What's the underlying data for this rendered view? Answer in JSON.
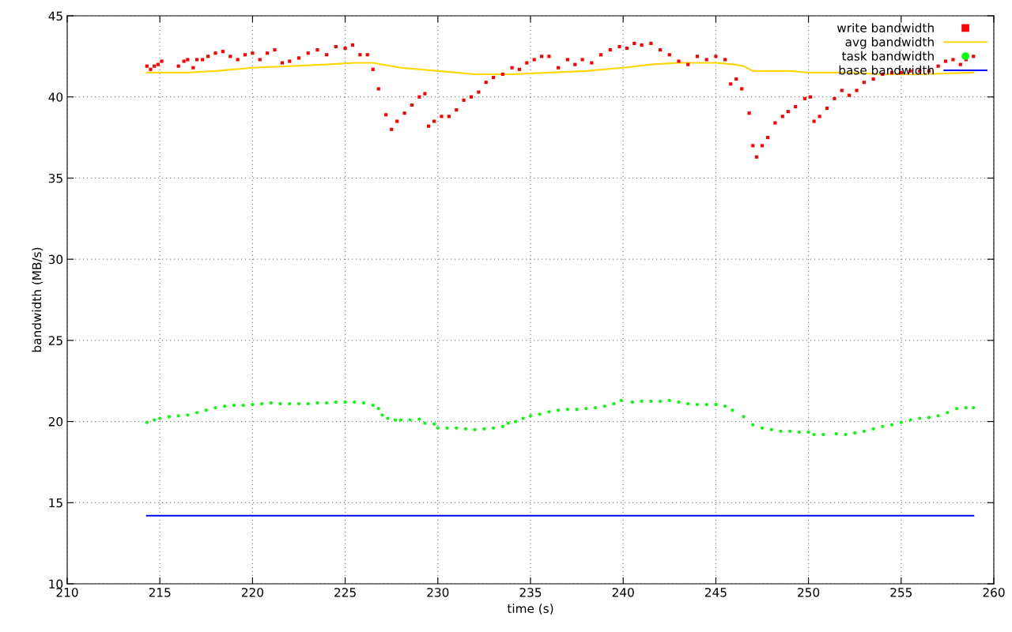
{
  "chart_data": {
    "type": "scatter",
    "xlabel": "time (s)",
    "ylabel": "bandwidth (MB/s)",
    "xlim": [
      210,
      260
    ],
    "xticks": [
      210,
      215,
      220,
      225,
      230,
      235,
      240,
      245,
      250,
      255,
      260
    ],
    "ylim": [
      10,
      45
    ],
    "yticks": [
      10,
      15,
      20,
      25,
      30,
      35,
      40,
      45
    ],
    "grid": true,
    "legend": "top right",
    "series": [
      {
        "name": "write bandwidth",
        "marker": "square",
        "color": "#ff0000",
        "x": [
          214.3,
          214.5,
          214.7,
          214.9,
          215.1,
          216.0,
          216.3,
          216.5,
          216.8,
          217.0,
          217.3,
          217.6,
          218.0,
          218.4,
          218.8,
          219.2,
          219.6,
          220.0,
          220.4,
          220.8,
          221.2,
          221.6,
          222.0,
          222.5,
          223.0,
          223.5,
          224.0,
          224.5,
          225.0,
          225.4,
          225.8,
          226.2,
          226.5,
          226.8,
          227.2,
          227.5,
          227.8,
          228.2,
          228.6,
          229.0,
          229.3,
          229.5,
          229.8,
          230.2,
          230.6,
          231.0,
          231.4,
          231.8,
          232.2,
          232.6,
          233.0,
          233.5,
          234.0,
          234.4,
          234.8,
          235.2,
          235.6,
          236.0,
          236.5,
          237.0,
          237.4,
          237.8,
          238.3,
          238.8,
          239.3,
          239.8,
          240.2,
          240.6,
          241.0,
          241.5,
          242.0,
          242.5,
          243.0,
          243.5,
          244.0,
          244.5,
          245.0,
          245.5,
          245.8,
          246.1,
          246.4,
          246.8,
          247.0,
          247.2,
          247.5,
          247.8,
          248.2,
          248.6,
          248.9,
          249.3,
          249.8,
          250.1,
          250.3,
          250.6,
          251.0,
          251.4,
          251.8,
          252.2,
          252.6,
          253.0,
          253.5,
          254.0,
          254.5,
          255.0,
          255.5,
          256.0,
          256.5,
          257.0,
          257.4,
          257.8,
          258.2,
          258.5,
          258.9
        ],
        "values": [
          41.9,
          41.7,
          41.9,
          42.0,
          42.2,
          41.9,
          42.2,
          42.3,
          41.8,
          42.3,
          42.3,
          42.5,
          42.7,
          42.8,
          42.5,
          42.3,
          42.6,
          42.7,
          42.3,
          42.7,
          42.9,
          42.1,
          42.2,
          42.4,
          42.7,
          42.9,
          42.6,
          43.1,
          43.0,
          43.2,
          42.6,
          42.6,
          41.7,
          40.5,
          38.9,
          38.0,
          38.5,
          39.0,
          39.5,
          40.0,
          40.2,
          38.2,
          38.5,
          38.8,
          38.8,
          39.2,
          39.8,
          40.0,
          40.3,
          40.9,
          41.2,
          41.4,
          41.8,
          41.7,
          42.1,
          42.3,
          42.5,
          42.5,
          41.8,
          42.3,
          42.0,
          42.3,
          42.1,
          42.6,
          42.9,
          43.1,
          43.0,
          43.3,
          43.2,
          43.3,
          42.9,
          42.6,
          42.2,
          42.0,
          42.5,
          42.3,
          42.5,
          42.3,
          40.8,
          41.1,
          40.5,
          39.0,
          37.0,
          36.3,
          37.0,
          37.5,
          38.4,
          38.8,
          39.1,
          39.4,
          39.9,
          40.0,
          38.5,
          38.8,
          39.3,
          39.9,
          40.4,
          40.1,
          40.4,
          40.9,
          41.1,
          41.4,
          41.5,
          41.5,
          41.6,
          41.6,
          41.6,
          41.9,
          42.2,
          42.3,
          42.0,
          42.3,
          42.5
        ]
      },
      {
        "name": "avg bandwidth",
        "type": "line",
        "color": "#ffd700",
        "x": [
          214.3,
          215.5,
          216.5,
          218,
          220,
          222,
          224,
          225.5,
          226.5,
          227.5,
          228,
          229,
          230,
          231,
          232,
          234,
          236,
          238,
          240,
          241.5,
          243,
          245,
          246,
          246.5,
          247,
          249,
          250,
          252,
          254,
          256,
          258.9
        ],
        "values": [
          41.5,
          41.5,
          41.5,
          41.6,
          41.8,
          41.9,
          42.0,
          42.1,
          42.1,
          41.9,
          41.8,
          41.7,
          41.6,
          41.5,
          41.4,
          41.4,
          41.5,
          41.6,
          41.8,
          42.0,
          42.1,
          42.1,
          42.0,
          41.9,
          41.6,
          41.6,
          41.5,
          41.5,
          41.4,
          41.4,
          41.5
        ]
      },
      {
        "name": "task bandwidth",
        "marker": "circle",
        "color": "#00ff00",
        "x": [
          214.3,
          214.7,
          215.0,
          215.5,
          216,
          216.5,
          217,
          217.5,
          218,
          218.5,
          219,
          219.5,
          220,
          220.5,
          221,
          221.5,
          222,
          222.5,
          223,
          223.5,
          224,
          224.5,
          225,
          225.5,
          226,
          226.5,
          226.8,
          227.0,
          227.3,
          227.7,
          228,
          228.5,
          229,
          229.3,
          229.8,
          230.0,
          230.5,
          231,
          231.5,
          232,
          232.5,
          233,
          233.5,
          233.8,
          234.2,
          234.6,
          235,
          235.5,
          236,
          236.5,
          237,
          237.5,
          238,
          238.5,
          239,
          239.5,
          239.9,
          240.5,
          241,
          241.5,
          242,
          242.5,
          243,
          243.5,
          244,
          244.5,
          245,
          245.5,
          245.9,
          246.5,
          247,
          247.5,
          248,
          248.5,
          249,
          249.5,
          250,
          250.3,
          250.8,
          251.5,
          252,
          252.5,
          253,
          253.5,
          254,
          254.5,
          255,
          255.5,
          256,
          256.5,
          257,
          257.5,
          258,
          258.5,
          258.9
        ],
        "values": [
          19.95,
          20.1,
          20.2,
          20.3,
          20.35,
          20.4,
          20.55,
          20.7,
          20.85,
          20.95,
          21.0,
          21.0,
          21.05,
          21.1,
          21.15,
          21.1,
          21.1,
          21.1,
          21.1,
          21.15,
          21.15,
          21.2,
          21.2,
          21.2,
          21.15,
          21.0,
          20.8,
          20.4,
          20.2,
          20.1,
          20.1,
          20.1,
          20.15,
          19.9,
          19.85,
          19.6,
          19.6,
          19.6,
          19.55,
          19.5,
          19.55,
          19.6,
          19.7,
          19.9,
          20.0,
          20.2,
          20.35,
          20.45,
          20.6,
          20.7,
          20.75,
          20.75,
          20.8,
          20.85,
          20.95,
          21.1,
          21.3,
          21.2,
          21.25,
          21.25,
          21.25,
          21.3,
          21.2,
          21.1,
          21.05,
          21.05,
          21.05,
          20.95,
          20.7,
          20.3,
          19.8,
          19.6,
          19.5,
          19.4,
          19.4,
          19.35,
          19.35,
          19.2,
          19.2,
          19.25,
          19.2,
          19.3,
          19.4,
          19.55,
          19.7,
          19.8,
          19.95,
          20.1,
          20.2,
          20.25,
          20.35,
          20.55,
          20.8,
          20.85,
          20.85
        ]
      },
      {
        "name": "base bandwidth",
        "type": "line",
        "color": "#0000ff",
        "x": [
          214.3,
          258.9
        ],
        "values": [
          14.2,
          14.2
        ]
      }
    ]
  }
}
